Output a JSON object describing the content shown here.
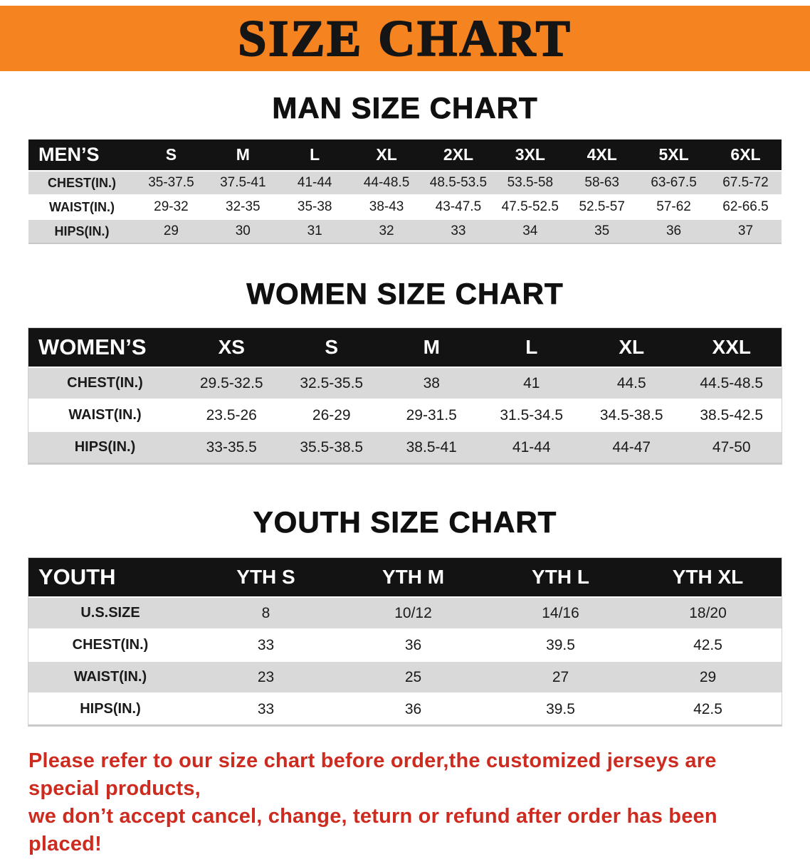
{
  "banner": {
    "title": "SIZE CHART"
  },
  "colors": {
    "banner_bg": "#F5831F",
    "header_bar_bg": "#131313",
    "stripe": "#D9D9D9",
    "footer_text": "#CE2B20"
  },
  "sections": {
    "men": {
      "title": "MAN SIZE CHART",
      "table": {
        "label": "MEN’S",
        "columns": [
          "S",
          "M",
          "L",
          "XL",
          "2XL",
          "3XL",
          "4XL",
          "5XL",
          "6XL"
        ],
        "rows": [
          {
            "label": "CHEST(IN.)",
            "values": [
              "35-37.5",
              "37.5-41",
              "41-44",
              "44-48.5",
              "48.5-53.5",
              "53.5-58",
              "58-63",
              "63-67.5",
              "67.5-72"
            ]
          },
          {
            "label": "WAIST(IN.)",
            "values": [
              "29-32",
              "32-35",
              "35-38",
              "38-43",
              "43-47.5",
              "47.5-52.5",
              "52.5-57",
              "57-62",
              "62-66.5"
            ]
          },
          {
            "label": "HIPS(IN.)",
            "values": [
              "29",
              "30",
              "31",
              "32",
              "33",
              "34",
              "35",
              "36",
              "37"
            ]
          }
        ]
      }
    },
    "women": {
      "title": "WOMEN SIZE CHART",
      "table": {
        "label": "WOMEN’S",
        "columns": [
          "XS",
          "S",
          "M",
          "L",
          "XL",
          "XXL"
        ],
        "rows": [
          {
            "label": "CHEST(IN.)",
            "values": [
              "29.5-32.5",
              "32.5-35.5",
              "38",
              "41",
              "44.5",
              "44.5-48.5"
            ]
          },
          {
            "label": "WAIST(IN.)",
            "values": [
              "23.5-26",
              "26-29",
              "29-31.5",
              "31.5-34.5",
              "34.5-38.5",
              "38.5-42.5"
            ]
          },
          {
            "label": "HIPS(IN.)",
            "values": [
              "33-35.5",
              "35.5-38.5",
              "38.5-41",
              "41-44",
              "44-47",
              "47-50"
            ]
          }
        ]
      }
    },
    "youth": {
      "title": "YOUTH SIZE CHART",
      "table": {
        "label": "YOUTH",
        "columns": [
          "YTH S",
          "YTH M",
          "YTH L",
          "YTH XL"
        ],
        "rows": [
          {
            "label": "U.S.SIZE",
            "values": [
              "8",
              "10/12",
              "14/16",
              "18/20"
            ]
          },
          {
            "label": "CHEST(IN.)",
            "values": [
              "33",
              "36",
              "39.5",
              "42.5"
            ]
          },
          {
            "label": "WAIST(IN.)",
            "values": [
              "23",
              "25",
              "27",
              "29"
            ]
          },
          {
            "label": "HIPS(IN.)",
            "values": [
              "33",
              "36",
              "39.5",
              "42.5"
            ]
          }
        ]
      }
    }
  },
  "footer": {
    "line1": "Please refer to our size chart before order,the customized jerseys are special products,",
    "line2": "we don’t accept cancel, change, teturn or refund after order has been placed!"
  }
}
